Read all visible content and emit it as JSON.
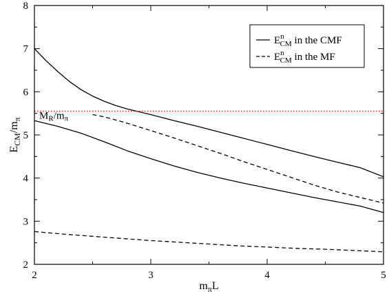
{
  "chart_data": {
    "type": "line",
    "title": "",
    "xlabel": {
      "main": "m",
      "sub": "π",
      "tail": "L"
    },
    "ylabel": {
      "main": "E",
      "sub": "CM",
      "mid": "/m",
      "sub2": "π"
    },
    "xlim": [
      2,
      5
    ],
    "ylim": [
      2,
      8
    ],
    "xticks": [
      2,
      3,
      4,
      5
    ],
    "yticks": [
      2,
      3,
      4,
      5,
      6,
      7,
      8
    ],
    "grid": false,
    "legend_position": "top-right",
    "legend": [
      {
        "main": "E",
        "sup": "n",
        "sub": "CM",
        "tail": " in the CMF",
        "style": "solid"
      },
      {
        "main": "E",
        "sup": "n",
        "sub": "CM",
        "tail": " in the MF",
        "style": "dashed"
      }
    ],
    "reference_line": {
      "y": 5.55,
      "color": "#ff0000",
      "style": "dotted",
      "label": {
        "main": "M",
        "sub": "R",
        "mid": "/m",
        "sub2": "π"
      }
    },
    "series": [
      {
        "style": "solid",
        "x": [
          2.0,
          2.1,
          2.2,
          2.3,
          2.4,
          2.5,
          2.6,
          2.7,
          2.8,
          3.0,
          3.2,
          3.4,
          3.6,
          3.8,
          4.0,
          4.2,
          4.4,
          4.6,
          4.8,
          5.0
        ],
        "y": [
          7.0,
          6.72,
          6.47,
          6.24,
          6.05,
          5.9,
          5.78,
          5.68,
          5.6,
          5.47,
          5.33,
          5.2,
          5.06,
          4.92,
          4.78,
          4.64,
          4.5,
          4.37,
          4.24,
          4.03
        ]
      },
      {
        "style": "solid",
        "x": [
          2.0,
          2.2,
          2.4,
          2.6,
          2.8,
          3.0,
          3.2,
          3.4,
          3.6,
          3.8,
          4.0,
          4.2,
          4.4,
          4.6,
          4.8,
          5.0
        ],
        "y": [
          5.33,
          5.2,
          5.04,
          4.84,
          4.63,
          4.45,
          4.28,
          4.13,
          4.0,
          3.88,
          3.77,
          3.66,
          3.55,
          3.45,
          3.35,
          3.2
        ]
      },
      {
        "style": "dashed",
        "x": [
          2.5,
          2.6,
          2.8,
          3.0,
          3.2,
          3.4,
          3.6,
          3.8,
          4.0,
          4.2,
          4.4,
          4.6,
          4.8,
          5.0
        ],
        "y": [
          5.47,
          5.42,
          5.27,
          5.1,
          4.93,
          4.75,
          4.57,
          4.38,
          4.2,
          4.02,
          3.84,
          3.68,
          3.55,
          3.42
        ]
      },
      {
        "style": "dashed",
        "x": [
          2.0,
          2.25,
          2.5,
          2.75,
          3.0,
          3.25,
          3.5,
          3.75,
          4.0,
          4.25,
          4.5,
          4.75,
          5.0
        ],
        "y": [
          2.76,
          2.7,
          2.65,
          2.6,
          2.55,
          2.51,
          2.47,
          2.43,
          2.4,
          2.37,
          2.35,
          2.32,
          2.29
        ]
      }
    ]
  }
}
